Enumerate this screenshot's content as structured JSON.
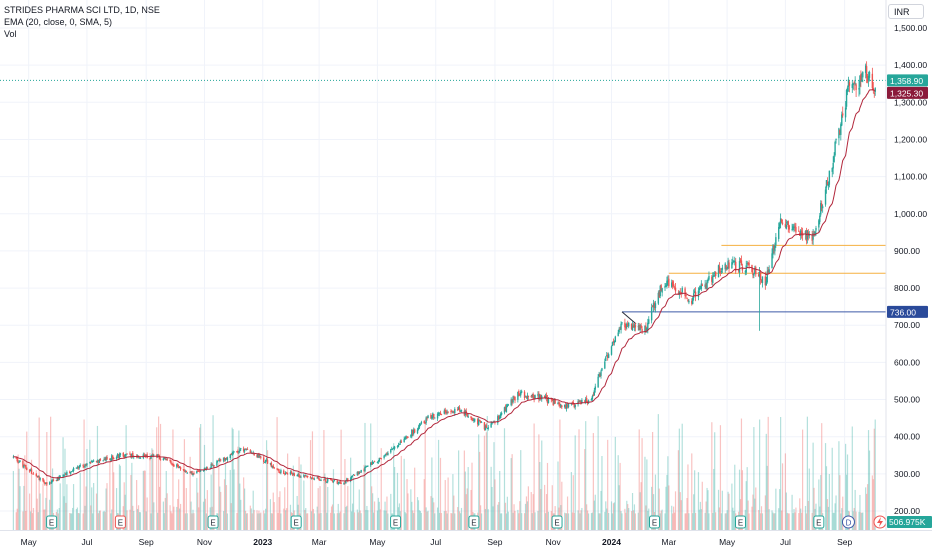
{
  "legend": {
    "symbol_line": "STRIDES PHARMA SCI LTD, 1D, NSE",
    "ema_line": "EMA (20, close, 0, SMA, 5)",
    "vol_line": "Vol"
  },
  "currency": "INR",
  "colors": {
    "up": "#26a69a",
    "down": "#ef5350",
    "ema": "#b2283c",
    "hline_orange": "#f5b041",
    "hline_blue": "#3d5aa8",
    "last_price_green": "#26a69a",
    "ema_badge": "#8b1a3a",
    "level_badge": "#2a4a9a",
    "vol_badge": "#26a69a",
    "event_e": "#26a69a",
    "event_e_red": "#ef5350",
    "event_d": "#3d5aa8"
  },
  "chart_data": {
    "type": "candlestick",
    "title": "STRIDES PHARMA SCI LTD, 1D, NSE",
    "price_axis": {
      "ticks": [
        1500,
        1400,
        1300,
        1200,
        1100,
        1000,
        900,
        800,
        700,
        600,
        500,
        400,
        300,
        200
      ],
      "tick_labels": [
        "1,500.00",
        "1,400.00",
        "1,300.00",
        "1,200.00",
        "1,100.00",
        "1,000.00",
        "900.00",
        "800.00",
        "700.00",
        "600.00",
        "500.00",
        "400.00",
        "300.00",
        "200.00"
      ],
      "ylim": [
        170,
        1540
      ]
    },
    "time_axis": {
      "tick_labels": [
        "May",
        "Jul",
        "Sep",
        "Nov",
        "2023",
        "Mar",
        "May",
        "Jul",
        "Sep",
        "Nov",
        "2024",
        "Mar",
        "May",
        "Jul",
        "Sep"
      ],
      "bold_labels": [
        "2023",
        "2024"
      ]
    },
    "price_path_anchors": [
      {
        "date": "2022-04-15",
        "close": 345
      },
      {
        "date": "2022-05-20",
        "close": 272
      },
      {
        "date": "2022-06-20",
        "close": 318
      },
      {
        "date": "2022-08-05",
        "close": 350
      },
      {
        "date": "2022-09-15",
        "close": 345
      },
      {
        "date": "2022-10-20",
        "close": 300
      },
      {
        "date": "2022-12-15",
        "close": 370
      },
      {
        "date": "2023-01-20",
        "close": 305
      },
      {
        "date": "2023-03-25",
        "close": 275
      },
      {
        "date": "2023-05-15",
        "close": 360
      },
      {
        "date": "2023-06-25",
        "close": 455
      },
      {
        "date": "2023-07-25",
        "close": 475
      },
      {
        "date": "2023-08-25",
        "close": 420
      },
      {
        "date": "2023-09-25",
        "close": 515
      },
      {
        "date": "2023-10-20",
        "close": 505
      },
      {
        "date": "2023-11-15",
        "close": 480
      },
      {
        "date": "2023-12-10",
        "close": 500
      },
      {
        "date": "2024-01-10",
        "close": 700
      },
      {
        "date": "2024-02-05",
        "close": 690
      },
      {
        "date": "2024-02-25",
        "close": 820
      },
      {
        "date": "2024-03-25",
        "close": 770
      },
      {
        "date": "2024-04-25",
        "close": 860
      },
      {
        "date": "2024-05-20",
        "close": 860
      },
      {
        "date": "2024-06-10",
        "close": 820
      },
      {
        "date": "2024-06-25",
        "close": 975
      },
      {
        "date": "2024-07-30",
        "close": 935
      },
      {
        "date": "2024-08-20",
        "close": 1150
      },
      {
        "date": "2024-09-05",
        "close": 1340
      },
      {
        "date": "2024-09-25",
        "close": 1380
      },
      {
        "date": "2024-10-03",
        "close": 1325
      }
    ],
    "markers": [
      {
        "type": "E",
        "date": "2022-05-25"
      },
      {
        "type": "E",
        "date": "2022-08-05",
        "color": "red"
      },
      {
        "type": "E",
        "date": "2022-11-10"
      },
      {
        "type": "E",
        "date": "2023-02-05"
      },
      {
        "type": "E",
        "date": "2023-05-20"
      },
      {
        "type": "E",
        "date": "2023-08-10"
      },
      {
        "type": "E",
        "date": "2023-11-05"
      },
      {
        "type": "E",
        "date": "2024-02-15"
      },
      {
        "type": "E",
        "date": "2024-05-15"
      },
      {
        "type": "E",
        "date": "2024-08-05"
      },
      {
        "type": "D",
        "date": "2024-09-05"
      }
    ],
    "horizontal_levels": [
      {
        "price": 915,
        "start": "2024-04-25",
        "color": "orange"
      },
      {
        "price": 840,
        "start": "2024-03-01",
        "color": "orange"
      },
      {
        "price": 736,
        "start": "2024-01-12",
        "color": "blue",
        "label": "736.00"
      },
      {
        "price": 1358.9,
        "dotted": true,
        "color": "green"
      }
    ],
    "price_labels": {
      "last": "1,358.90",
      "ema": "1,325.30",
      "level": "736.00",
      "volume": "506.975K"
    }
  }
}
